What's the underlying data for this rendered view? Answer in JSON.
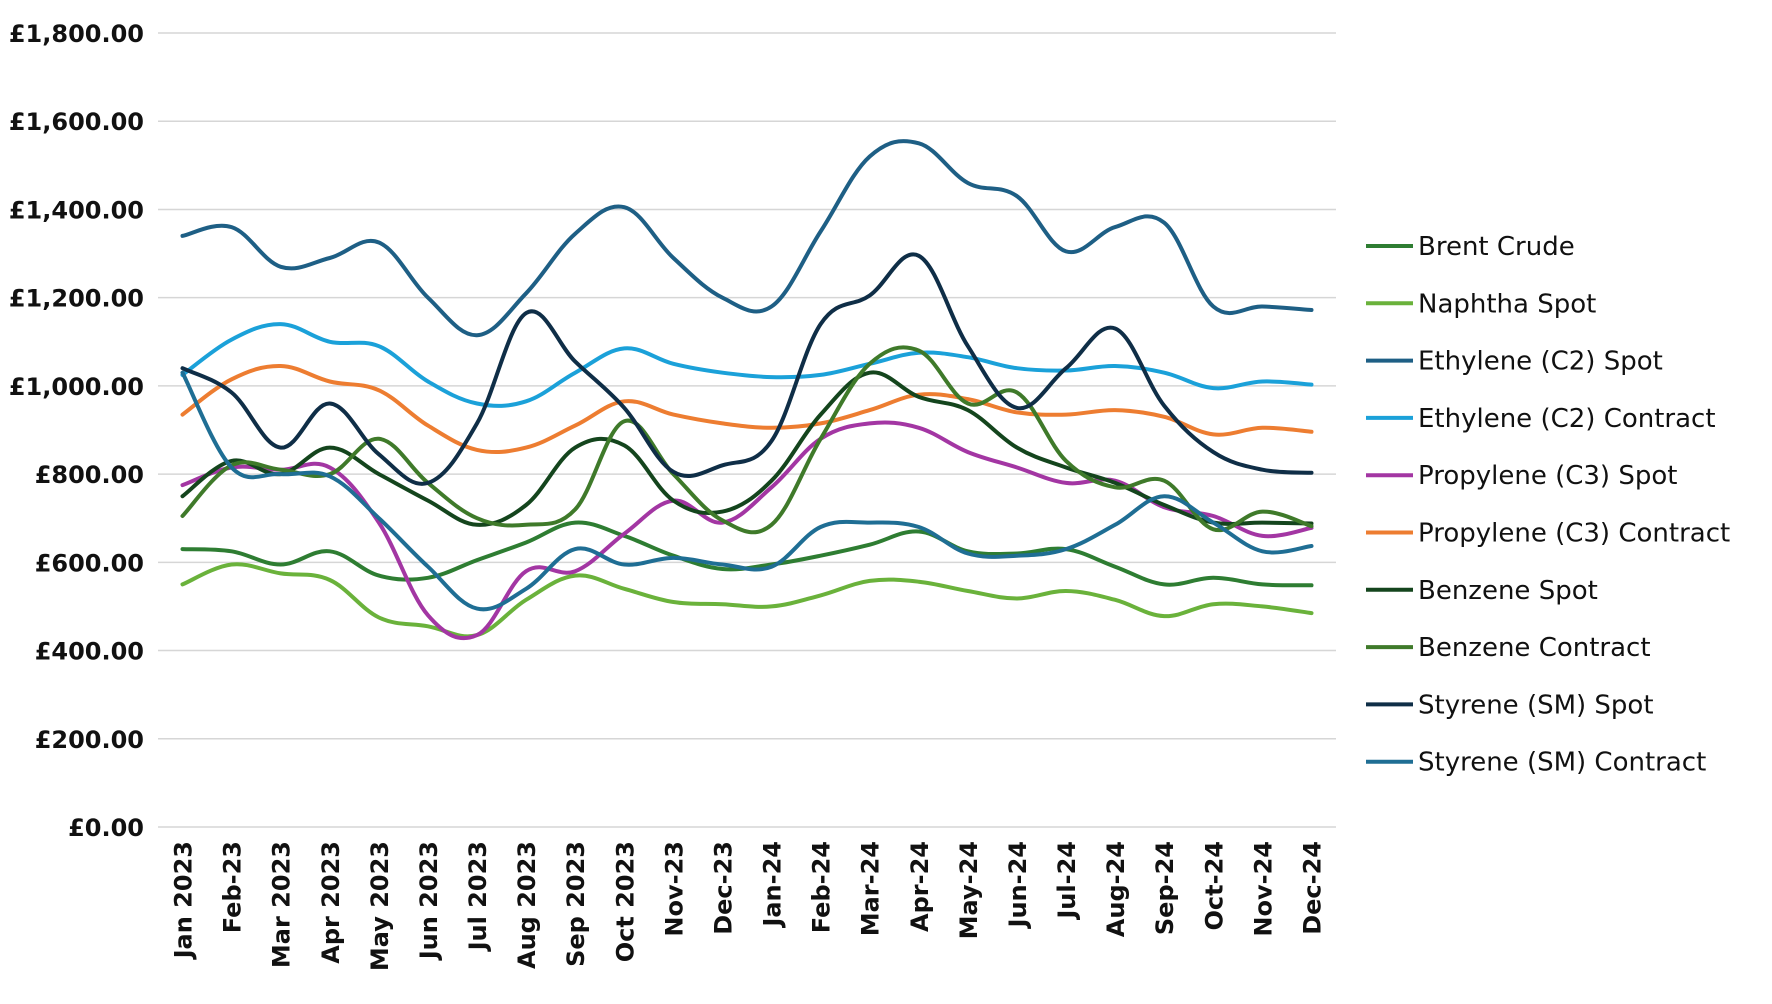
{
  "chart_data": {
    "type": "line",
    "title": "",
    "xlabel": "",
    "ylabel": "",
    "ylim": [
      0,
      1800
    ],
    "y_ticks": [
      {
        "value": 0,
        "label": "£0.00"
      },
      {
        "value": 200,
        "label": "£200.00"
      },
      {
        "value": 400,
        "label": "£400.00"
      },
      {
        "value": 600,
        "label": "£600.00"
      },
      {
        "value": 800,
        "label": "£800.00"
      },
      {
        "value": 1000,
        "label": "£1,000.00"
      },
      {
        "value": 1200,
        "label": "£1,200.00"
      },
      {
        "value": 1400,
        "label": "£1,400.00"
      },
      {
        "value": 1600,
        "label": "£1,600.00"
      },
      {
        "value": 1800,
        "label": "£1,800.00"
      }
    ],
    "categories": [
      "Jan 2023",
      "Feb-23",
      "Mar 2023",
      "Apr 2023",
      "May 2023",
      "Jun 2023",
      "Jul 2023",
      "Aug 2023",
      "Sep 2023",
      "Oct 2023",
      "Nov-23",
      "Dec-23",
      "Jan-24",
      "Feb-24",
      "Mar-24",
      "Apr-24",
      "May-24",
      "Jun-24",
      "Jul-24",
      "Aug-24",
      "Sep-24",
      "Oct-24",
      "Nov-24",
      "Dec-24"
    ],
    "grid": true,
    "legend_position": "right",
    "series": [
      {
        "name": "Brent Crude",
        "color": "#2e7d32",
        "values": [
          630,
          625,
          595,
          625,
          570,
          565,
          605,
          645,
          690,
          660,
          615,
          585,
          595,
          615,
          640,
          670,
          625,
          620,
          630,
          590,
          550,
          565,
          550,
          548
        ]
      },
      {
        "name": "Naphtha Spot",
        "color": "#6ab23b",
        "values": [
          550,
          595,
          575,
          560,
          475,
          455,
          435,
          515,
          570,
          540,
          510,
          505,
          500,
          525,
          558,
          556,
          535,
          518,
          535,
          515,
          478,
          505,
          500,
          485
        ]
      },
      {
        "name": "Ethylene (C2) Spot",
        "color": "#1e5f85",
        "values": [
          1340,
          1360,
          1270,
          1290,
          1325,
          1200,
          1115,
          1210,
          1345,
          1405,
          1290,
          1200,
          1180,
          1350,
          1520,
          1550,
          1460,
          1430,
          1305,
          1360,
          1370,
          1180,
          1180,
          1172
        ]
      },
      {
        "name": "Ethylene (C2) Contract",
        "color": "#1ba1d9",
        "values": [
          1025,
          1105,
          1140,
          1100,
          1090,
          1010,
          960,
          965,
          1030,
          1085,
          1050,
          1030,
          1020,
          1025,
          1050,
          1075,
          1065,
          1040,
          1035,
          1045,
          1030,
          995,
          1010,
          1003
        ]
      },
      {
        "name": "Propylene (C3) Spot",
        "color": "#a336a3",
        "values": [
          775,
          815,
          810,
          815,
          690,
          480,
          435,
          580,
          580,
          665,
          740,
          690,
          770,
          880,
          915,
          905,
          850,
          815,
          780,
          785,
          725,
          705,
          660,
          678
        ]
      },
      {
        "name": "Propylene (C3) Contract",
        "color": "#ed7d31",
        "values": [
          935,
          1015,
          1045,
          1010,
          990,
          910,
          855,
          860,
          910,
          965,
          935,
          915,
          905,
          915,
          945,
          980,
          970,
          940,
          935,
          945,
          930,
          890,
          905,
          896
        ]
      },
      {
        "name": "Benzene Spot",
        "color": "#14451d",
        "values": [
          750,
          830,
          800,
          860,
          800,
          740,
          685,
          730,
          860,
          865,
          740,
          715,
          785,
          935,
          1030,
          975,
          945,
          860,
          815,
          780,
          730,
          690,
          690,
          688
        ]
      },
      {
        "name": "Benzene Contract",
        "color": "#3f7a2a",
        "values": [
          705,
          820,
          810,
          800,
          880,
          780,
          700,
          685,
          720,
          920,
          800,
          695,
          685,
          880,
          1050,
          1080,
          960,
          985,
          830,
          770,
          785,
          675,
          715,
          682
        ]
      },
      {
        "name": "Styrene (SM) Spot",
        "color": "#0f2e47",
        "values": [
          1040,
          985,
          860,
          960,
          845,
          780,
          915,
          1165,
          1055,
          950,
          805,
          820,
          875,
          1140,
          1205,
          1295,
          1090,
          950,
          1040,
          1130,
          955,
          850,
          810,
          803
        ]
      },
      {
        "name": "Styrene (SM) Contract",
        "color": "#1f6e94",
        "values": [
          1030,
          815,
          800,
          795,
          700,
          590,
          495,
          540,
          630,
          595,
          610,
          595,
          590,
          680,
          690,
          680,
          620,
          615,
          630,
          685,
          750,
          690,
          625,
          637
        ]
      }
    ]
  }
}
